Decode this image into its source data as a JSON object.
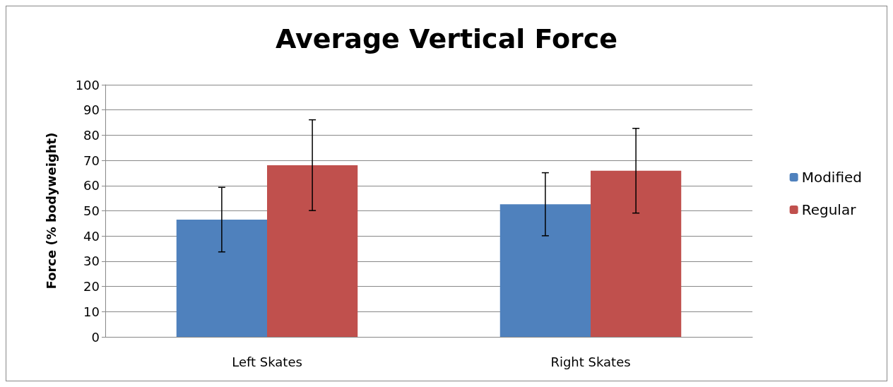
{
  "chart_data": {
    "type": "bar",
    "title": "Average Vertical Force",
    "ylabel": "Force (% bodyweight)",
    "categories": [
      "Left Skates",
      "Right Skates"
    ],
    "series": [
      {
        "name": "Modified",
        "color": "#4f81bd",
        "values": [
          46.5,
          52.6
        ],
        "errors": [
          12.8,
          12.5
        ]
      },
      {
        "name": "Regular",
        "color": "#c0504d",
        "values": [
          68.1,
          65.9
        ],
        "errors": [
          18,
          16.8
        ]
      }
    ],
    "ylim": [
      0,
      100
    ],
    "yticks": [
      0,
      10,
      20,
      30,
      40,
      50,
      60,
      70,
      80,
      90,
      100
    ],
    "grid": "y",
    "legend": "right"
  }
}
